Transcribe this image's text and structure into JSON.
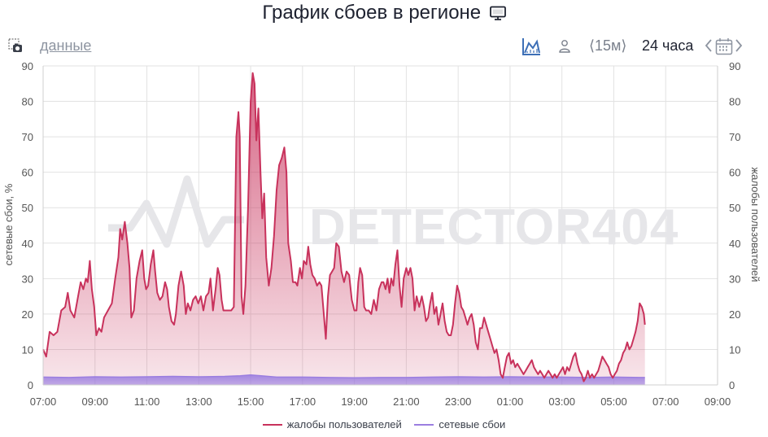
{
  "header": {
    "title": "График сбоев в регионе",
    "title_icon": "monitor-icon"
  },
  "toolbar": {
    "snapshot_icon": "camera-icon",
    "data_link": "данные",
    "area_toggle_icon": "area-chart-icon",
    "user_icon": "user-icon",
    "interval": "⟨15м⟩",
    "period": "24 часа",
    "prev_icon": "chevron-left-icon",
    "calendar_icon": "calendar-icon",
    "next_icon": "chevron-right-icon"
  },
  "colors": {
    "complaints": "#c8325c",
    "failures": "#9b7ee0",
    "grid": "#e2e2e2",
    "watermark": "#e6e6e9"
  },
  "watermark": "DETECTOR404",
  "chart_data": {
    "type": "area",
    "x_ticks": [
      "07:00",
      "09:00",
      "11:00",
      "13:00",
      "15:00",
      "17:00",
      "19:00",
      "21:00",
      "23:00",
      "01:00",
      "03:00",
      "05:00",
      "07:00",
      "09:00"
    ],
    "y_left": {
      "label": "сетевые сбои, %",
      "ticks": [
        "0",
        "10",
        "20",
        "30",
        "40",
        "50",
        "60",
        "70",
        "80",
        "90"
      ],
      "range": [
        0,
        90
      ]
    },
    "y_right": {
      "label": "жалобы пользователей",
      "ticks": [
        "0",
        "10",
        "20",
        "30",
        "40",
        "50",
        "60",
        "70",
        "80",
        "90"
      ],
      "range": [
        0,
        90
      ]
    },
    "x_range_hours": [
      0,
      26
    ],
    "grid": true,
    "legend_position": "bottom",
    "series": [
      {
        "name": "жалобы пользователей",
        "points": [
          [
            0.0,
            10
          ],
          [
            0.12,
            8
          ],
          [
            0.25,
            15
          ],
          [
            0.4,
            14
          ],
          [
            0.55,
            15
          ],
          [
            0.7,
            21
          ],
          [
            0.85,
            22
          ],
          [
            0.95,
            26
          ],
          [
            1.05,
            21
          ],
          [
            1.2,
            19
          ],
          [
            1.35,
            25
          ],
          [
            1.45,
            29
          ],
          [
            1.55,
            27
          ],
          [
            1.65,
            30
          ],
          [
            1.72,
            29
          ],
          [
            1.8,
            35
          ],
          [
            1.88,
            27
          ],
          [
            1.97,
            22
          ],
          [
            2.05,
            14
          ],
          [
            2.15,
            16
          ],
          [
            2.25,
            15
          ],
          [
            2.35,
            19
          ],
          [
            2.5,
            21
          ],
          [
            2.65,
            23
          ],
          [
            2.78,
            30
          ],
          [
            2.9,
            36
          ],
          [
            2.97,
            44
          ],
          [
            3.05,
            41
          ],
          [
            3.15,
            46
          ],
          [
            3.25,
            40
          ],
          [
            3.33,
            33
          ],
          [
            3.4,
            19
          ],
          [
            3.5,
            21
          ],
          [
            3.6,
            30
          ],
          [
            3.72,
            35
          ],
          [
            3.82,
            38
          ],
          [
            3.9,
            30
          ],
          [
            3.97,
            27
          ],
          [
            4.05,
            28
          ],
          [
            4.15,
            34
          ],
          [
            4.25,
            38
          ],
          [
            4.32,
            32
          ],
          [
            4.4,
            26
          ],
          [
            4.5,
            24
          ],
          [
            4.6,
            25
          ],
          [
            4.7,
            29
          ],
          [
            4.78,
            27
          ],
          [
            4.85,
            22
          ],
          [
            4.95,
            18
          ],
          [
            5.05,
            17
          ],
          [
            5.12,
            20
          ],
          [
            5.22,
            28
          ],
          [
            5.32,
            32
          ],
          [
            5.42,
            28
          ],
          [
            5.5,
            20
          ],
          [
            5.58,
            23
          ],
          [
            5.68,
            21
          ],
          [
            5.78,
            24
          ],
          [
            5.88,
            25
          ],
          [
            5.98,
            23
          ],
          [
            6.08,
            25
          ],
          [
            6.18,
            21
          ],
          [
            6.28,
            25
          ],
          [
            6.38,
            26
          ],
          [
            6.45,
            30
          ],
          [
            6.55,
            21
          ],
          [
            6.65,
            27
          ],
          [
            6.73,
            33
          ],
          [
            6.8,
            31
          ],
          [
            6.88,
            24
          ],
          [
            6.95,
            21
          ],
          [
            7.1,
            21
          ],
          [
            7.25,
            21
          ],
          [
            7.35,
            22
          ],
          [
            7.45,
            70
          ],
          [
            7.53,
            77
          ],
          [
            7.58,
            70
          ],
          [
            7.65,
            25
          ],
          [
            7.72,
            20
          ],
          [
            7.8,
            28
          ],
          [
            7.9,
            50
          ],
          [
            8.0,
            80
          ],
          [
            8.08,
            88
          ],
          [
            8.15,
            85
          ],
          [
            8.22,
            69
          ],
          [
            8.3,
            78
          ],
          [
            8.38,
            60
          ],
          [
            8.45,
            47
          ],
          [
            8.52,
            54
          ],
          [
            8.6,
            36
          ],
          [
            8.7,
            28
          ],
          [
            8.8,
            33
          ],
          [
            8.9,
            42
          ],
          [
            9.0,
            55
          ],
          [
            9.1,
            62
          ],
          [
            9.2,
            64
          ],
          [
            9.3,
            67
          ],
          [
            9.38,
            60
          ],
          [
            9.45,
            40
          ],
          [
            9.55,
            35
          ],
          [
            9.63,
            29
          ],
          [
            9.73,
            29
          ],
          [
            9.8,
            28
          ],
          [
            9.9,
            33
          ],
          [
            9.98,
            30
          ],
          [
            10.05,
            35
          ],
          [
            10.15,
            34
          ],
          [
            10.22,
            39
          ],
          [
            10.3,
            34
          ],
          [
            10.38,
            31
          ],
          [
            10.47,
            30
          ],
          [
            10.56,
            28
          ],
          [
            10.65,
            29
          ],
          [
            10.73,
            28
          ],
          [
            10.82,
            20
          ],
          [
            10.9,
            13
          ],
          [
            10.98,
            25
          ],
          [
            11.06,
            31
          ],
          [
            11.14,
            32
          ],
          [
            11.22,
            33
          ],
          [
            11.3,
            40
          ],
          [
            11.4,
            39
          ],
          [
            11.5,
            32
          ],
          [
            11.6,
            29
          ],
          [
            11.7,
            32
          ],
          [
            11.8,
            31
          ],
          [
            11.9,
            24
          ],
          [
            12.0,
            21
          ],
          [
            12.08,
            21
          ],
          [
            12.15,
            29
          ],
          [
            12.22,
            33
          ],
          [
            12.3,
            31
          ],
          [
            12.38,
            22
          ],
          [
            12.45,
            21
          ],
          [
            12.55,
            21
          ],
          [
            12.65,
            20
          ],
          [
            12.75,
            24
          ],
          [
            12.85,
            21
          ],
          [
            12.95,
            27
          ],
          [
            13.05,
            29
          ],
          [
            13.12,
            29
          ],
          [
            13.2,
            27
          ],
          [
            13.28,
            30
          ],
          [
            13.35,
            26
          ],
          [
            13.42,
            30
          ],
          [
            13.5,
            28
          ],
          [
            13.58,
            34
          ],
          [
            13.66,
            38
          ],
          [
            13.74,
            28
          ],
          [
            13.82,
            22
          ],
          [
            13.9,
            30
          ],
          [
            14.0,
            33
          ],
          [
            14.08,
            31
          ],
          [
            14.16,
            33
          ],
          [
            14.24,
            30
          ],
          [
            14.32,
            21
          ],
          [
            14.4,
            25
          ],
          [
            14.5,
            22
          ],
          [
            14.6,
            25
          ],
          [
            14.68,
            22
          ],
          [
            14.76,
            18
          ],
          [
            14.84,
            19
          ],
          [
            14.92,
            23
          ],
          [
            15.0,
            26
          ],
          [
            15.08,
            20
          ],
          [
            15.16,
            22
          ],
          [
            15.24,
            17
          ],
          [
            15.32,
            20
          ],
          [
            15.4,
            23
          ],
          [
            15.48,
            18
          ],
          [
            15.56,
            15
          ],
          [
            15.64,
            14
          ],
          [
            15.72,
            14
          ],
          [
            15.8,
            17
          ],
          [
            15.88,
            23
          ],
          [
            15.96,
            28
          ],
          [
            16.04,
            26
          ],
          [
            16.12,
            22
          ],
          [
            16.2,
            21
          ],
          [
            16.28,
            19
          ],
          [
            16.36,
            17
          ],
          [
            16.44,
            19
          ],
          [
            16.52,
            20
          ],
          [
            16.6,
            17
          ],
          [
            16.68,
            12
          ],
          [
            16.76,
            10
          ],
          [
            16.84,
            16
          ],
          [
            16.92,
            16
          ],
          [
            17.0,
            19
          ],
          [
            17.08,
            17
          ],
          [
            17.16,
            15
          ],
          [
            17.24,
            13
          ],
          [
            17.32,
            11
          ],
          [
            17.4,
            9
          ],
          [
            17.48,
            10
          ],
          [
            17.56,
            7
          ],
          [
            17.64,
            3
          ],
          [
            17.72,
            2
          ],
          [
            17.8,
            5
          ],
          [
            17.88,
            8
          ],
          [
            17.96,
            9
          ],
          [
            18.04,
            6
          ],
          [
            18.12,
            7
          ],
          [
            18.2,
            5
          ],
          [
            18.28,
            6
          ],
          [
            18.36,
            5
          ],
          [
            18.44,
            4
          ],
          [
            18.52,
            3
          ],
          [
            18.6,
            4
          ],
          [
            18.68,
            5
          ],
          [
            18.76,
            6
          ],
          [
            18.84,
            7
          ],
          [
            18.92,
            5
          ],
          [
            19.0,
            4
          ],
          [
            19.08,
            3
          ],
          [
            19.16,
            4
          ],
          [
            19.24,
            3
          ],
          [
            19.32,
            2
          ],
          [
            19.4,
            3
          ],
          [
            19.48,
            4
          ],
          [
            19.56,
            3
          ],
          [
            19.64,
            2
          ],
          [
            19.72,
            3
          ],
          [
            19.8,
            2
          ],
          [
            19.88,
            3
          ],
          [
            19.96,
            4
          ],
          [
            20.04,
            5
          ],
          [
            20.12,
            3
          ],
          [
            20.2,
            5
          ],
          [
            20.28,
            4
          ],
          [
            20.36,
            6
          ],
          [
            20.44,
            8
          ],
          [
            20.52,
            9
          ],
          [
            20.6,
            6
          ],
          [
            20.68,
            4
          ],
          [
            20.76,
            3
          ],
          [
            20.84,
            1
          ],
          [
            20.92,
            2
          ],
          [
            21.0,
            4
          ],
          [
            21.08,
            2
          ],
          [
            21.16,
            3
          ],
          [
            21.24,
            2
          ],
          [
            21.32,
            3
          ],
          [
            21.4,
            4
          ],
          [
            21.48,
            6
          ],
          [
            21.56,
            8
          ],
          [
            21.64,
            7
          ],
          [
            21.72,
            6
          ],
          [
            21.8,
            5
          ],
          [
            21.88,
            3
          ],
          [
            21.96,
            2
          ],
          [
            22.04,
            3
          ],
          [
            22.12,
            4
          ],
          [
            22.2,
            6
          ],
          [
            22.28,
            7
          ],
          [
            22.36,
            9
          ],
          [
            22.44,
            10
          ],
          [
            22.52,
            12
          ],
          [
            22.6,
            10
          ],
          [
            22.68,
            11
          ],
          [
            22.76,
            13
          ],
          [
            22.84,
            15
          ],
          [
            22.92,
            18
          ],
          [
            23.0,
            23
          ],
          [
            23.08,
            22
          ],
          [
            23.16,
            20
          ],
          [
            23.2,
            17
          ]
        ]
      },
      {
        "name": "сетевые сбои",
        "points": [
          [
            0.0,
            2.2
          ],
          [
            1.0,
            2.1
          ],
          [
            2.0,
            2.3
          ],
          [
            3.0,
            2.2
          ],
          [
            4.0,
            2.3
          ],
          [
            5.0,
            2.4
          ],
          [
            6.0,
            2.3
          ],
          [
            7.0,
            2.4
          ],
          [
            7.6,
            2.6
          ],
          [
            8.0,
            2.8
          ],
          [
            8.4,
            2.6
          ],
          [
            9.0,
            2.2
          ],
          [
            10.0,
            2.2
          ],
          [
            11.0,
            2.1
          ],
          [
            12.0,
            2.0
          ],
          [
            13.0,
            2.1
          ],
          [
            14.0,
            2.1
          ],
          [
            15.0,
            2.2
          ],
          [
            16.0,
            2.3
          ],
          [
            17.0,
            2.2
          ],
          [
            18.0,
            2.3
          ],
          [
            19.0,
            2.2
          ],
          [
            20.0,
            2.2
          ],
          [
            21.0,
            2.1
          ],
          [
            22.0,
            2.2
          ],
          [
            23.0,
            2.1
          ],
          [
            23.2,
            2.1
          ]
        ]
      }
    ]
  }
}
